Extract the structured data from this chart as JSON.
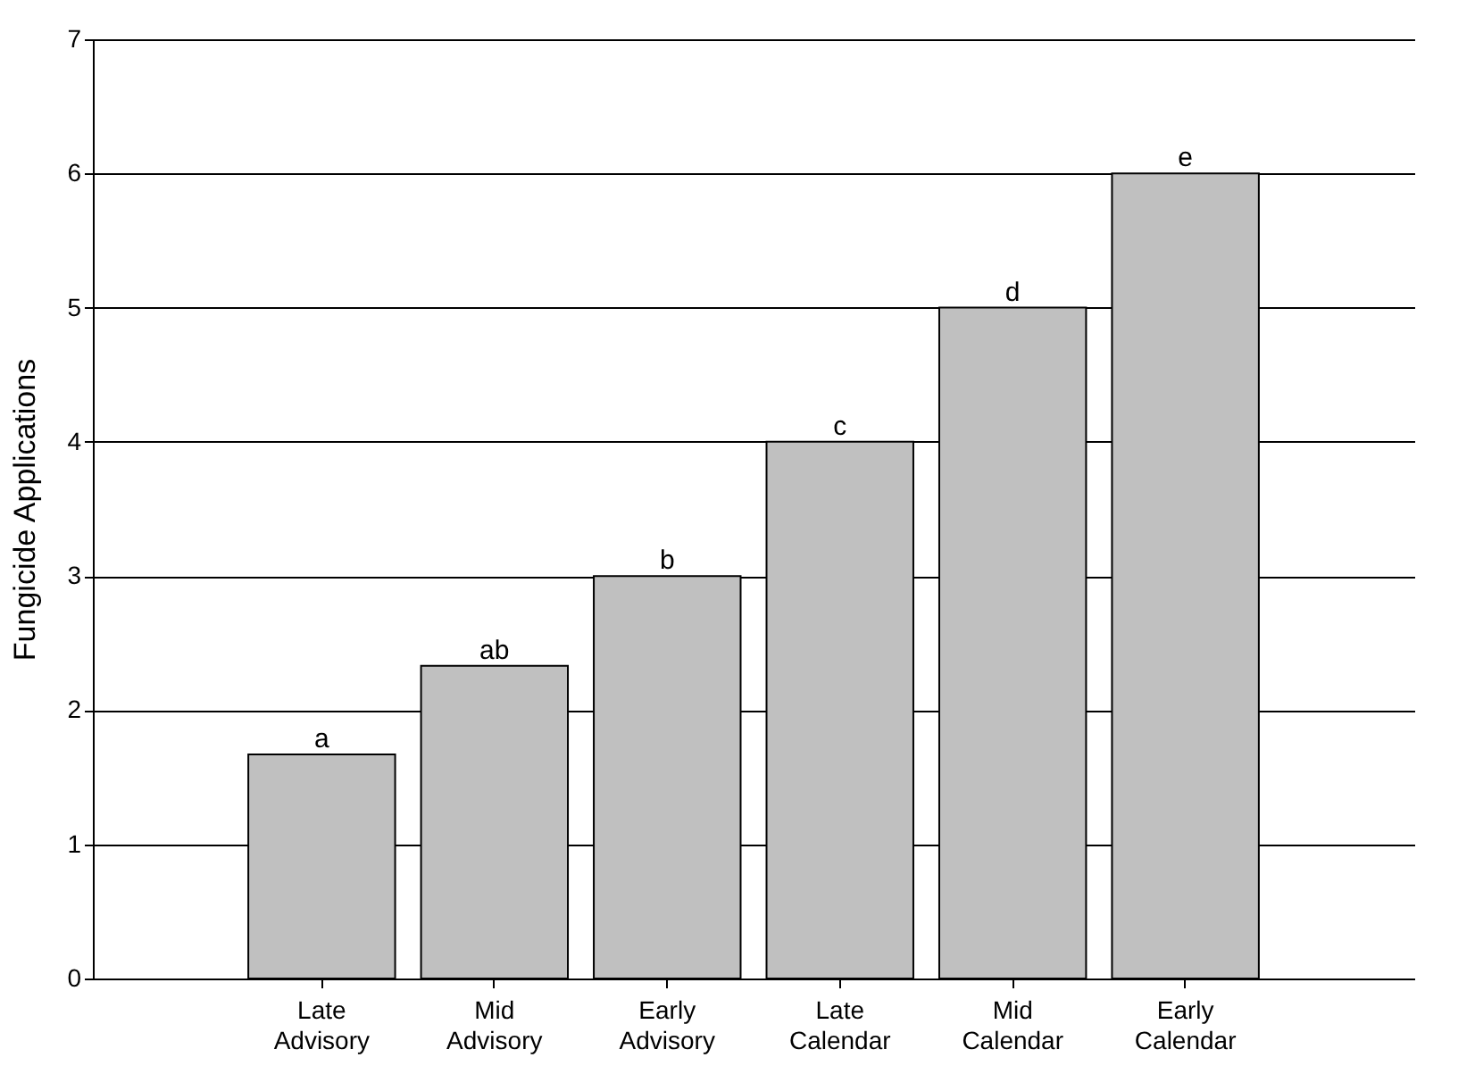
{
  "chart_data": {
    "type": "bar",
    "ylabel": "Fungicide Applications",
    "categories": [
      "Late Advisory",
      "Mid Advisory",
      "Early Advisory",
      "Late Calendar",
      "Mid Calendar",
      "Early Calendar"
    ],
    "values": [
      1.67,
      2.33,
      3,
      4,
      5,
      6
    ],
    "color": "#c0c0c0",
    "ylim": [
      0,
      7
    ],
    "yticks": [
      0,
      1,
      2,
      3,
      4,
      5,
      6,
      7
    ],
    "grid": "y",
    "annotations": [
      {
        "text": "a",
        "x": "Late Advisory",
        "y": 1.67
      },
      {
        "text": "ab",
        "x": "Mid Advisory",
        "y": 2.33
      },
      {
        "text": "b",
        "x": "Early Advisory",
        "y": 3
      },
      {
        "text": "c",
        "x": "Late Calendar",
        "y": 4
      },
      {
        "text": "d",
        "x": "Mid Calendar",
        "y": 5
      },
      {
        "text": "e",
        "x": "Early Calendar",
        "y": 6
      }
    ]
  }
}
